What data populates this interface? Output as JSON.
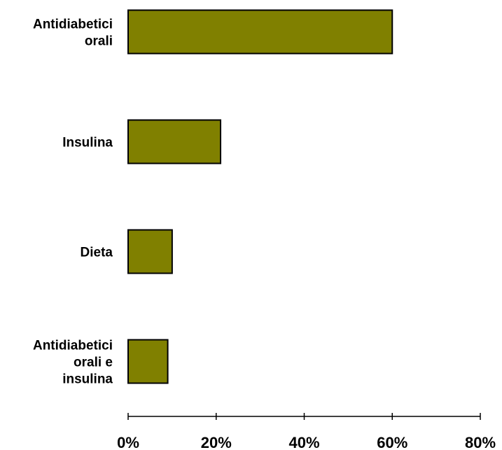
{
  "chart_data": {
    "type": "bar",
    "orientation": "horizontal",
    "categories": [
      [
        "Antidiabetici",
        "orali"
      ],
      [
        "Insulina"
      ],
      [
        "Dieta"
      ],
      [
        "Antidiabetici",
        "orali e",
        "insulina"
      ]
    ],
    "values": [
      60,
      21,
      10,
      9
    ],
    "x_ticks": [
      "0%",
      "20%",
      "40%",
      "60%",
      "80%"
    ],
    "xlim": [
      0,
      80
    ],
    "grid": false,
    "legend": "none",
    "bar_color": "#808000",
    "bar_edge_color": "#000000"
  }
}
